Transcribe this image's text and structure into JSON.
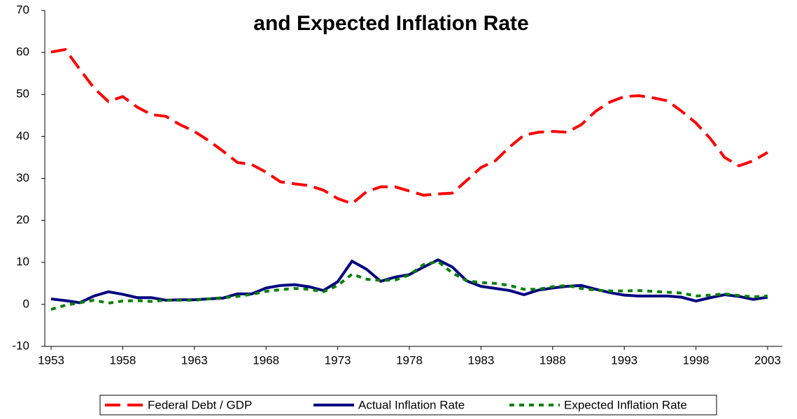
{
  "chart_data": {
    "type": "line",
    "title": "and Expected Inflation Rate",
    "x": [
      1953,
      1954,
      1955,
      1956,
      1957,
      1958,
      1959,
      1960,
      1961,
      1962,
      1963,
      1964,
      1965,
      1966,
      1967,
      1968,
      1969,
      1970,
      1971,
      1972,
      1973,
      1974,
      1975,
      1976,
      1977,
      1978,
      1979,
      1980,
      1981,
      1982,
      1983,
      1984,
      1985,
      1986,
      1987,
      1988,
      1989,
      1990,
      1991,
      1992,
      1993,
      1994,
      1995,
      1996,
      1997,
      1998,
      1999,
      2000,
      2001,
      2002,
      2003
    ],
    "series": [
      {
        "name": "Federal Debt / GDP",
        "color": "#ff0000",
        "style": "dashed",
        "values": [
          60.1,
          60.7,
          56,
          51.5,
          48.3,
          49.5,
          47,
          45.2,
          44.8,
          42.8,
          41.2,
          39,
          36.5,
          33.8,
          33.3,
          31.5,
          29.2,
          28.7,
          28.3,
          27.2,
          25.2,
          24,
          26.8,
          28,
          28,
          27,
          26,
          26.3,
          26.5,
          29.5,
          32.6,
          34.2,
          37.5,
          40.3,
          41,
          41.2,
          41,
          42.8,
          46,
          48.2,
          49.5,
          49.7,
          49.2,
          48.5,
          46,
          43.2,
          39.5,
          35,
          33,
          34.2,
          36.2
        ]
      },
      {
        "name": "Actual Inflation Rate",
        "color": "#000080",
        "style": "solid",
        "values": [
          1.3,
          0.9,
          0.4,
          2.0,
          3.0,
          2.4,
          1.6,
          1.6,
          1.0,
          1.1,
          1.1,
          1.3,
          1.5,
          2.5,
          2.5,
          3.9,
          4.5,
          4.7,
          4.2,
          3.3,
          5.4,
          10.3,
          8.4,
          5.5,
          6.5,
          7.1,
          8.9,
          10.6,
          8.9,
          5.6,
          4.3,
          3.8,
          3.3,
          2.3,
          3.4,
          3.9,
          4.3,
          4.5,
          3.6,
          2.8,
          2.2,
          2.0,
          2.0,
          2.0,
          1.7,
          0.8,
          1.6,
          2.3,
          1.9,
          1.2,
          1.7
        ]
      },
      {
        "name": "Expected Inflation Rate",
        "color": "#008000",
        "style": "dotted",
        "values": [
          -1.2,
          -0.2,
          0.4,
          1.0,
          0.3,
          0.8,
          0.9,
          0.7,
          1.0,
          1.0,
          1.0,
          1.3,
          1.6,
          1.9,
          2.4,
          3.1,
          3.5,
          3.8,
          3.6,
          3.0,
          4.5,
          7.2,
          6.0,
          5.7,
          5.8,
          7.0,
          9.5,
          10.2,
          7.5,
          5.6,
          5.2,
          5.0,
          4.5,
          3.6,
          3.6,
          4.2,
          4.5,
          3.8,
          3.4,
          3.2,
          3.2,
          3.3,
          3.1,
          2.9,
          2.7,
          2.0,
          2.2,
          2.5,
          2.1,
          1.8,
          2.0
        ]
      }
    ],
    "xlim": [
      1953,
      2003
    ],
    "xticks": [
      1953,
      1958,
      1963,
      1968,
      1973,
      1978,
      1983,
      1988,
      1993,
      1998,
      2003
    ],
    "ylim": [
      -10,
      70
    ],
    "yticks": [
      -10,
      0,
      10,
      20,
      30,
      40,
      50,
      60,
      70
    ],
    "legend": "bottom"
  }
}
